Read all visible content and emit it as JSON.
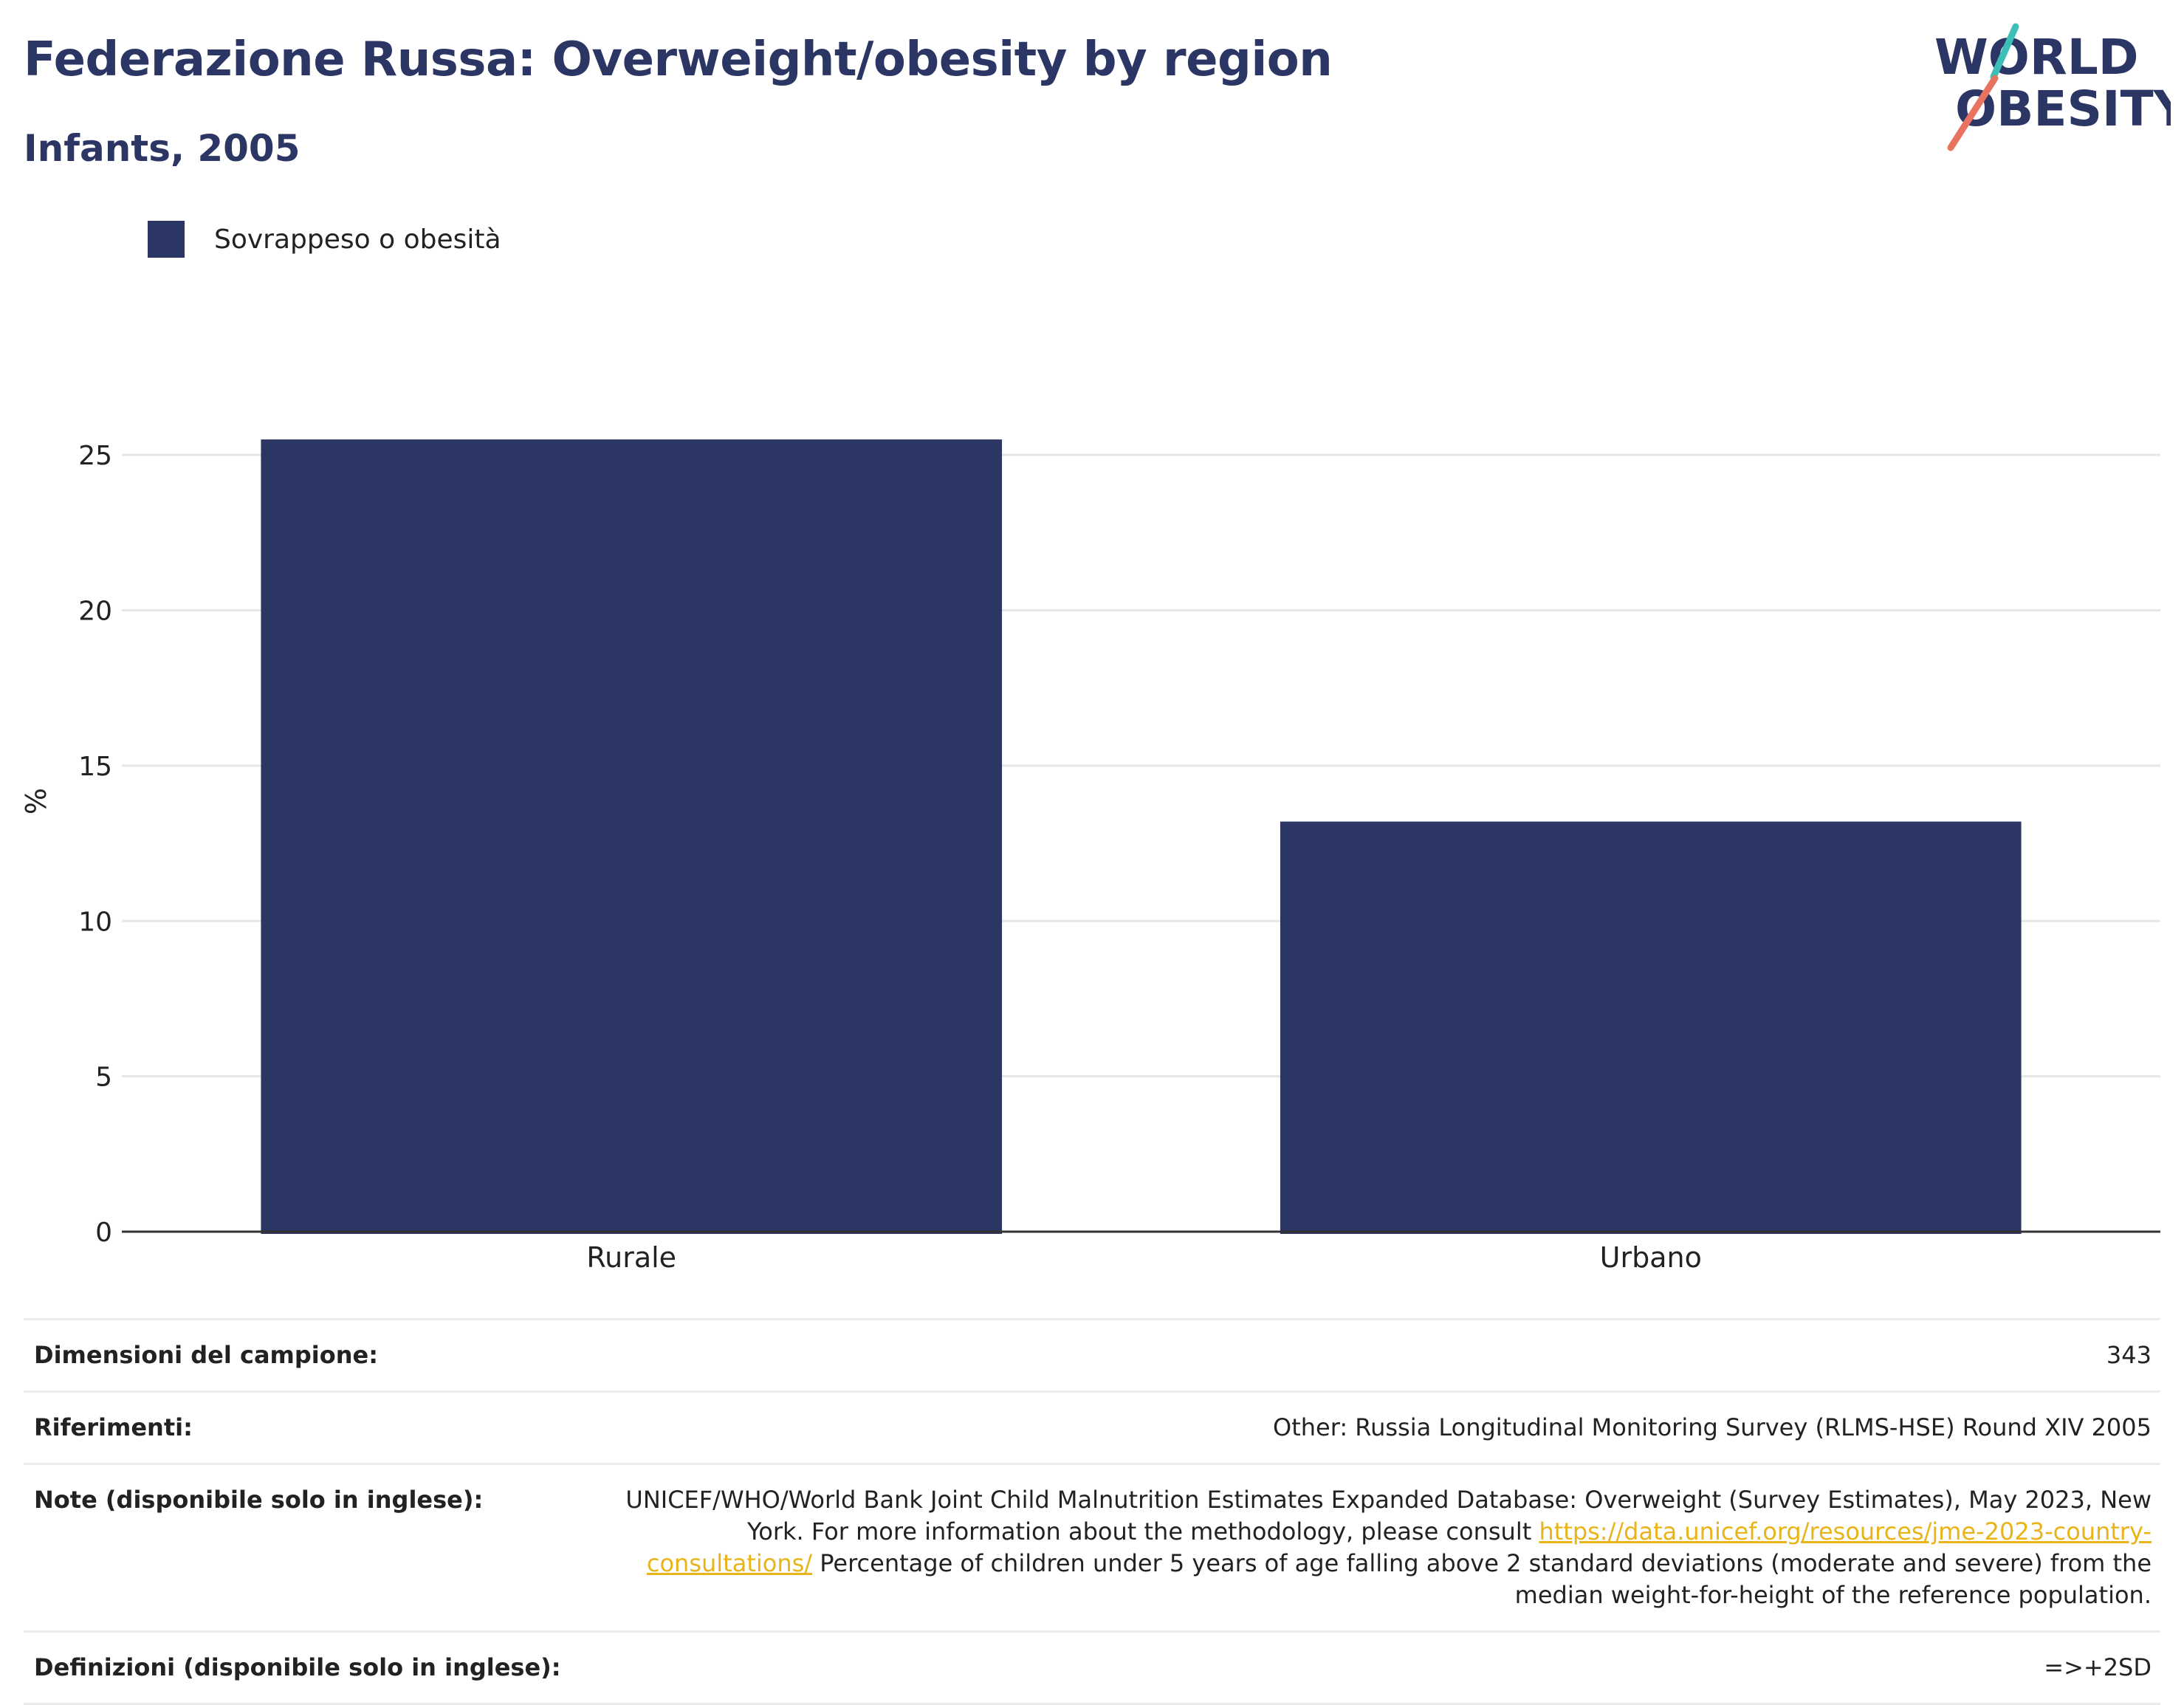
{
  "header": {
    "title": "Federazione Russa: Overweight/obesity by region",
    "subtitle": "Infants, 2005"
  },
  "logo": {
    "line1": "WORLD",
    "line2": "OBESITY"
  },
  "legend": {
    "label": "Sovrappeso o obesità",
    "color": "#2b3664"
  },
  "chart_data": {
    "type": "bar",
    "categories": [
      "Rurale",
      "Urbano"
    ],
    "series": [
      {
        "name": "Sovrappeso o obesità",
        "values": [
          25.5,
          13.2
        ],
        "color": "#2b3664"
      }
    ],
    "ylabel": "%",
    "xlabel": "",
    "ylim": [
      0,
      27
    ],
    "yticks": [
      0,
      5,
      10,
      15,
      20,
      25
    ],
    "grid": true
  },
  "footer": {
    "sample_size_label": "Dimensioni del campione:",
    "sample_size_value": "343",
    "references_label": "Riferimenti:",
    "references_value": "Other: Russia Longitudinal Monitoring Survey (RLMS-HSE) Round XIV 2005",
    "notes_label": "Note (disponibile solo in inglese):",
    "notes_text_1": "UNICEF/WHO/World Bank Joint Child Malnutrition Estimates Expanded Database: Overweight (Survey Estimates), May 2023, New York. For more information about the methodology, please consult",
    "notes_link": "https://data.unicef.org/resources/jme-2023-country-consultations/",
    "notes_text_2": "Percentage of children under 5 years of age falling above 2 standard deviations (moderate and severe) from the median weight-for-height of the reference population.",
    "definitions_label": "Definizioni (disponibile solo in inglese):",
    "definitions_value": "=>+2SD"
  }
}
